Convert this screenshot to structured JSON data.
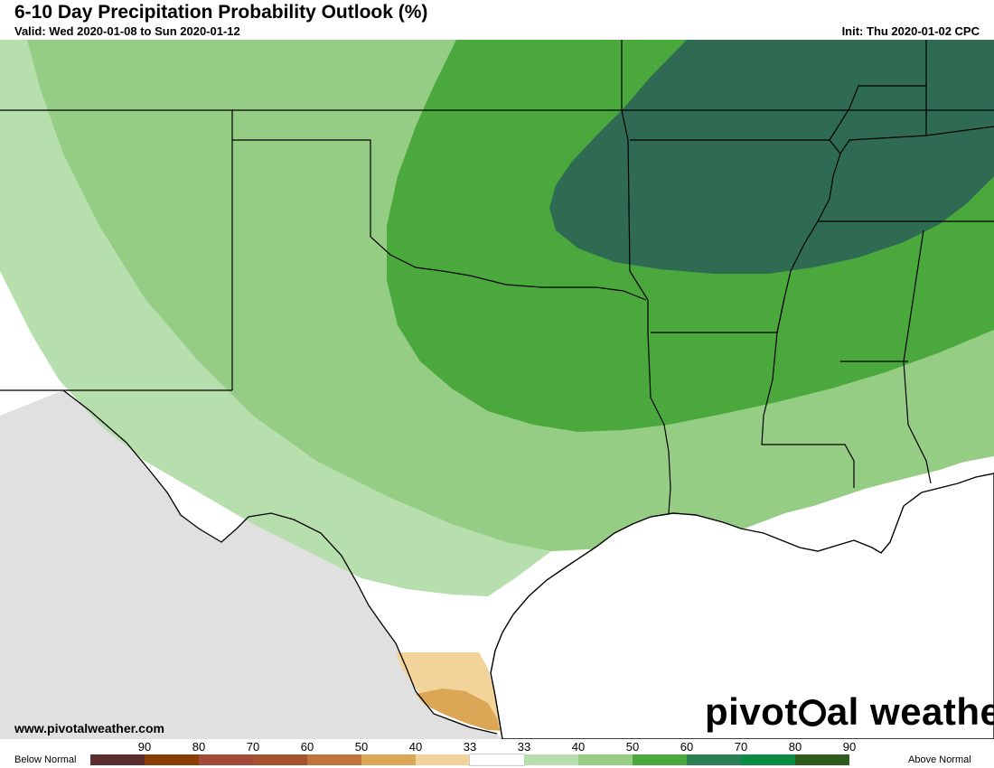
{
  "header": {
    "title": "6-10 Day Precipitation Probability Outlook (%)",
    "valid": "Valid: Wed 2020-01-08 to Sun 2020-01-12",
    "init": "Init: Thu 2020-01-02 CPC"
  },
  "footer": {
    "url": "www.pivotalweather.com",
    "brand_left": "pivot",
    "brand_right": "al weather",
    "logo_icon": "gear-icon"
  },
  "legend": {
    "below_label": "Below Normal",
    "above_label": "Above Normal",
    "bins": [
      {
        "label": "90",
        "color": "#5a2e2e"
      },
      {
        "label": "80",
        "color": "#8a3e07"
      },
      {
        "label": "70",
        "color": "#a44a3a"
      },
      {
        "label": "60",
        "color": "#a55230"
      },
      {
        "label": "50",
        "color": "#c0733a"
      },
      {
        "label": "40",
        "color": "#dba655"
      },
      {
        "label": "33",
        "color": "#f2d49a"
      },
      {
        "label": "33",
        "color": "#ffffff"
      },
      {
        "label": "40",
        "color": "#b7dfae"
      },
      {
        "label": "50",
        "color": "#96cd84"
      },
      {
        "label": "60",
        "color": "#4aa83d"
      },
      {
        "label": "70",
        "color": "#2a7f53"
      },
      {
        "label": "80",
        "color": "#0a8d42"
      },
      {
        "label": "90",
        "color": "#2e5c1e"
      }
    ]
  },
  "map": {
    "colors": {
      "land": "#ffffff",
      "mexico": "#e0e0e0",
      "gulf": "#ffffff",
      "above_40": "#b7dfae",
      "above_50": "#96cd84",
      "above_60": "#4aa83d",
      "above_70": "#2f6b52",
      "below_33_40": "#f2d49a",
      "below_40_50": "#dba655"
    }
  }
}
